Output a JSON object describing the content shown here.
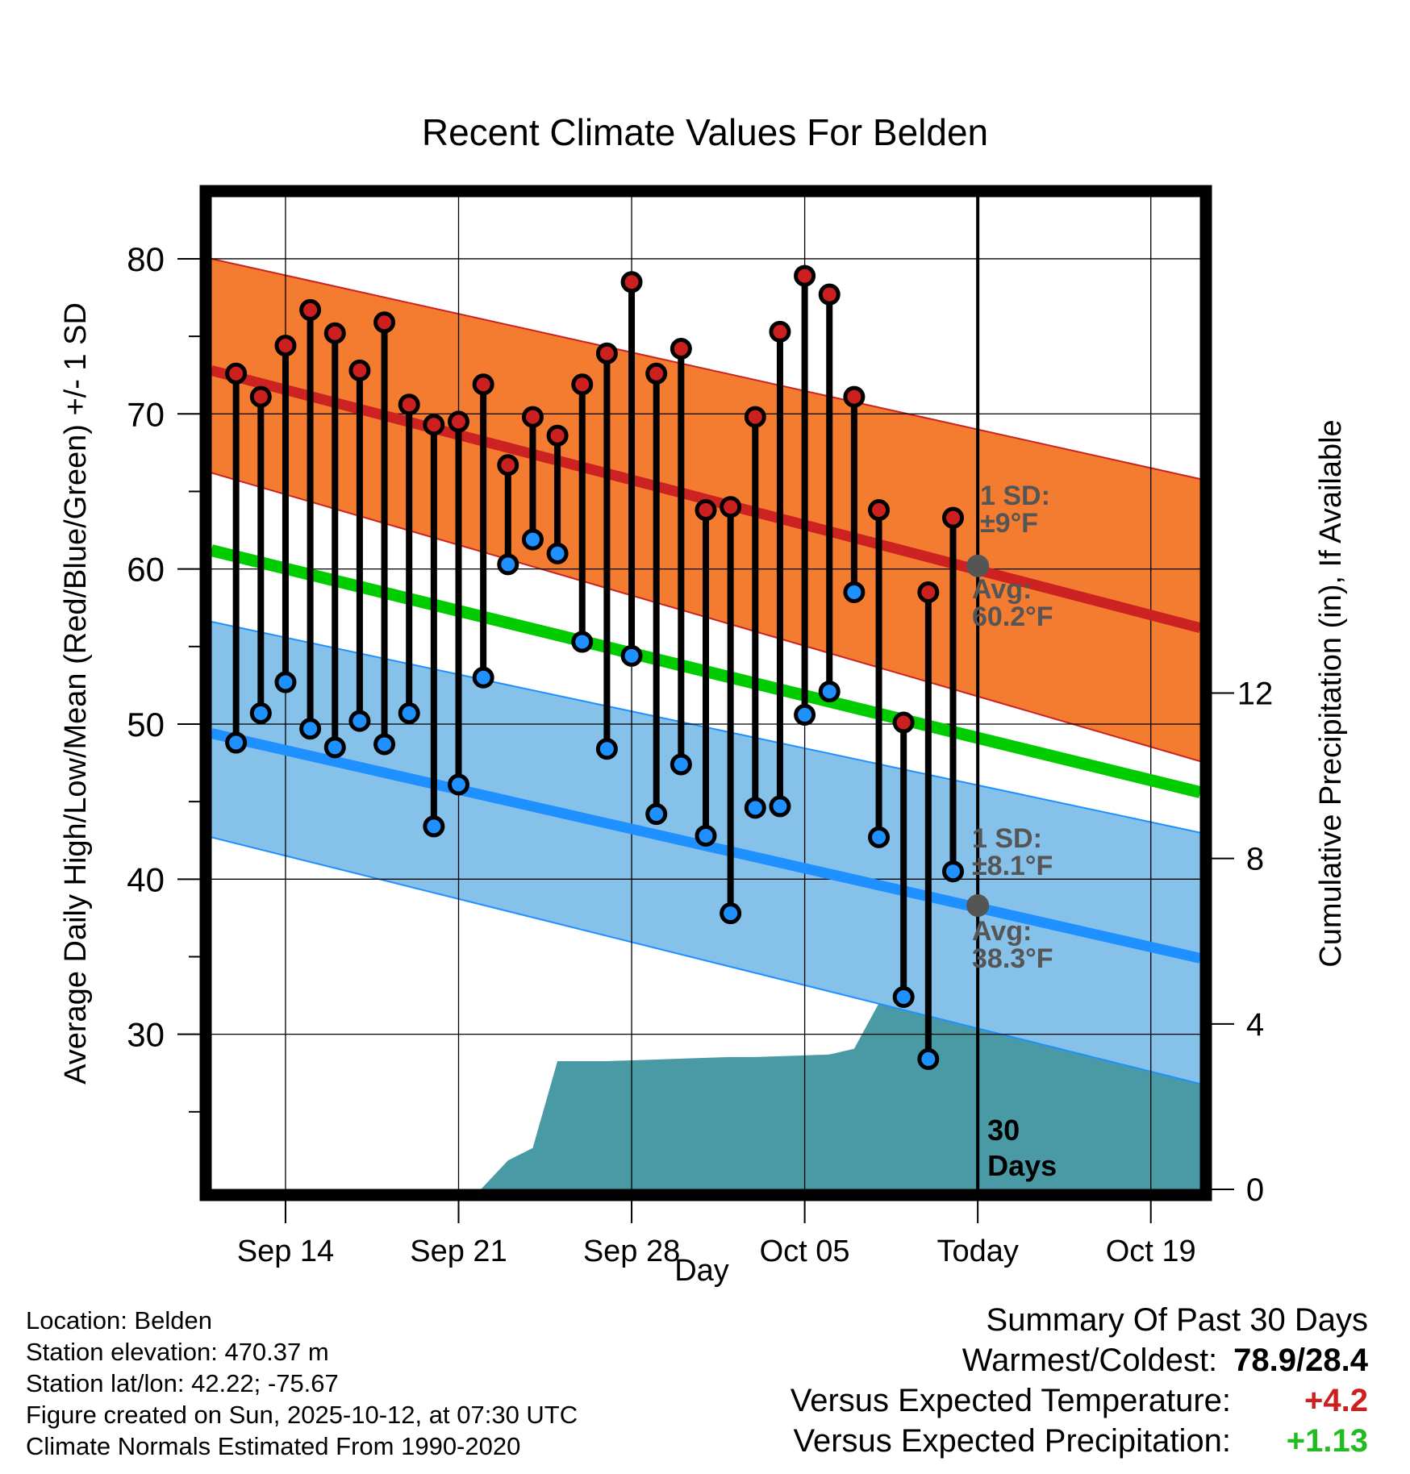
{
  "chart_data": {
    "type": "line",
    "title": "Recent Climate Values For Belden",
    "xlabel": "Day",
    "ylabel": "Average Daily High/Low/Mean (Red/Blue/Green) +/- 1 SD",
    "y2label": "Cumulative Precipitation (in), If Available",
    "ylim": [
      20,
      84
    ],
    "y2lim": [
      0,
      24
    ],
    "xlim": [
      0,
      40
    ],
    "yticks": [
      30,
      40,
      50,
      60,
      70,
      80
    ],
    "y2ticks": [
      0,
      4,
      8,
      12
    ],
    "xticks": [
      {
        "day": 3,
        "label": "Sep 14"
      },
      {
        "day": 10,
        "label": "Sep 21"
      },
      {
        "day": 17,
        "label": "Sep 28"
      },
      {
        "day": 24,
        "label": "Oct 05"
      },
      {
        "day": 31,
        "label": "Today"
      },
      {
        "day": 38,
        "label": "Oct 19"
      }
    ],
    "today_day": 31,
    "today_label": "30 Days",
    "normals": {
      "high_mean": [
        72.8,
        56.2
      ],
      "high_sd_upper": [
        80.0,
        65.8
      ],
      "high_sd_lower": [
        66.2,
        47.6
      ],
      "low_mean": [
        49.4,
        34.9
      ],
      "low_sd_upper": [
        56.6,
        43.0
      ],
      "low_sd_lower": [
        42.7,
        26.8
      ],
      "overall_mean": [
        61.2,
        45.6
      ]
    },
    "series": [
      {
        "name": "High",
        "color": "#cc1f1f",
        "x": [
          1,
          2,
          3,
          4,
          5,
          6,
          7,
          8,
          9,
          10,
          11,
          12,
          13,
          14,
          15,
          16,
          17,
          18,
          19,
          20,
          21,
          22,
          23,
          24,
          25,
          26,
          27,
          28,
          29,
          30
        ],
        "values": [
          72.6,
          71.1,
          74.4,
          76.7,
          75.2,
          72.8,
          75.9,
          70.6,
          69.3,
          69.5,
          71.9,
          66.7,
          69.8,
          68.6,
          71.9,
          73.9,
          78.5,
          72.6,
          74.2,
          63.8,
          64.0,
          69.8,
          75.3,
          78.9,
          77.7,
          71.1,
          63.8,
          50.1,
          58.5,
          63.3
        ]
      },
      {
        "name": "Low",
        "color": "#1e90ff",
        "x": [
          1,
          2,
          3,
          4,
          5,
          6,
          7,
          8,
          9,
          10,
          11,
          12,
          13,
          14,
          15,
          16,
          17,
          18,
          19,
          20,
          21,
          22,
          23,
          24,
          25,
          26,
          27,
          28,
          29,
          30
        ],
        "values": [
          48.8,
          50.7,
          52.7,
          49.7,
          48.5,
          50.2,
          48.7,
          50.7,
          43.4,
          46.1,
          53.0,
          60.3,
          61.9,
          61.0,
          55.3,
          48.4,
          54.4,
          44.2,
          47.4,
          42.8,
          37.8,
          44.6,
          44.7,
          50.6,
          52.1,
          58.5,
          42.7,
          32.4,
          28.4,
          40.5
        ]
      }
    ],
    "precip": {
      "x": [
        10.9,
        12,
        13,
        14,
        15,
        16,
        17,
        18,
        19,
        20,
        21,
        22,
        23,
        24,
        25,
        26,
        27,
        28,
        29,
        30,
        31,
        32,
        33,
        34,
        35,
        36,
        37,
        38,
        39,
        40
      ],
      "values": [
        0,
        0.7,
        1.0,
        3.1,
        3.1,
        3.1,
        3.12,
        3.14,
        3.16,
        3.18,
        3.2,
        3.2,
        3.22,
        3.24,
        3.26,
        3.4,
        4.5,
        5.1,
        5.2,
        5.4,
        5.4,
        5.4,
        5.4,
        5.4,
        5.4,
        5.4,
        5.4,
        5.4,
        5.4,
        5.4
      ]
    },
    "annotations": [
      {
        "label": "1 SD:",
        "value": "±9",
        "unit": "°F",
        "series": "high"
      },
      {
        "label": "Avg:",
        "value": "60.2",
        "unit": "°F",
        "series": "high",
        "marker_value": 60.2
      },
      {
        "label": "1 SD:",
        "value": "±8.1",
        "unit": "°F",
        "series": "low"
      },
      {
        "label": "Avg:",
        "value": "38.3",
        "unit": "°F",
        "series": "low",
        "marker_value": 38.3
      }
    ],
    "colors": {
      "high_band": "#f47c30",
      "high_line": "#cc2222",
      "low_band": "#85c1e9",
      "low_line": "#1e90ff",
      "mean_line": "#00cc00",
      "precip_fill": "#4a9aa5",
      "annotation_text": "#555555",
      "avg_marker": "#555555"
    }
  },
  "footer": {
    "location": "Location: Belden",
    "elevation": "Station elevation: 470.37 m",
    "latlon": "Station lat/lon: 42.22; -75.67",
    "created": "Figure created on Sun, 2025-10-12, at 07:30 UTC",
    "normals": "Climate Normals Estimated From 1990-2020"
  },
  "summary": {
    "title": "Summary Of Past 30 Days",
    "warmest_label": "Warmest/Coldest:",
    "warmest_value": "78.9/28.4",
    "temp_label": "Versus Expected Temperature:",
    "temp_value": "+4.2",
    "temp_color": "#cc1f1f",
    "precip_label": "Versus Expected Precipitation:",
    "precip_value": "+1.13",
    "precip_color": "#22bb22"
  }
}
